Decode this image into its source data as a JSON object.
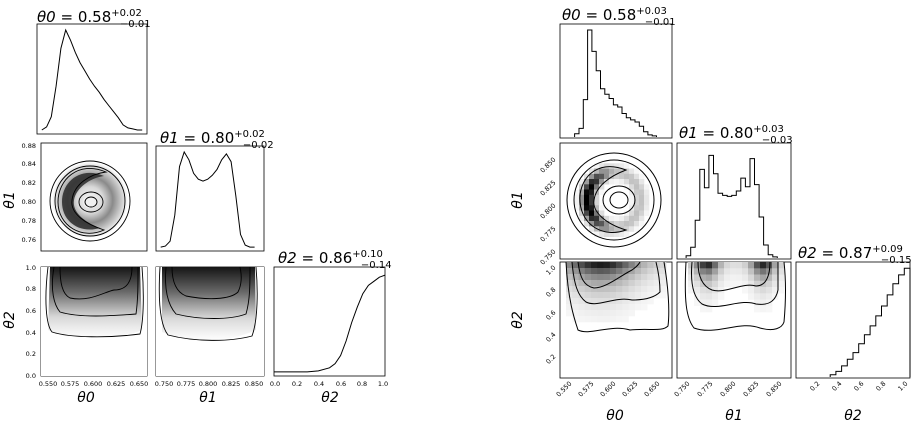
{
  "chart_data": [
    {
      "type": "corner",
      "style": "smoothed",
      "params": [
        "θ0",
        "θ1",
        "θ2"
      ],
      "titles": [
        {
          "median": "0.58",
          "plus": "+0.02",
          "minus": "−0.01"
        },
        {
          "median": "0.80",
          "plus": "+0.02",
          "minus": "−0.02"
        },
        {
          "median": "0.86",
          "plus": "+0.10",
          "minus": "−0.14"
        }
      ],
      "ranges": [
        [
          0.54,
          0.655
        ],
        [
          0.745,
          0.86
        ],
        [
          0.0,
          1.0
        ]
      ],
      "ticks": {
        "theta0": [
          "0.550",
          "0.575",
          "0.600",
          "0.625",
          "0.650"
        ],
        "theta1_x": [
          "0.750",
          "0.775",
          "0.800",
          "0.825",
          "0.850"
        ],
        "theta1_y": [
          "0.88",
          "0.84",
          "0.82",
          "0.80",
          "0.78",
          "0.76"
        ],
        "theta2_x": [
          "0.0",
          "0.2",
          "0.4",
          "0.6",
          "0.8",
          "1.0"
        ],
        "theta2_y": [
          "1.0",
          "0.8",
          "0.6",
          "0.4",
          "0.2",
          "0.0"
        ]
      },
      "marginals": {
        "theta0": {
          "x": [
            0.545,
            0.55,
            0.555,
            0.56,
            0.565,
            0.57,
            0.575,
            0.58,
            0.585,
            0.59,
            0.595,
            0.6,
            0.605,
            0.61,
            0.615,
            0.62,
            0.625,
            0.63,
            0.635,
            0.64,
            0.645,
            0.65
          ],
          "y": [
            0.02,
            0.05,
            0.15,
            0.45,
            0.82,
            1.0,
            0.9,
            0.78,
            0.68,
            0.6,
            0.52,
            0.45,
            0.39,
            0.32,
            0.26,
            0.2,
            0.14,
            0.07,
            0.04,
            0.03,
            0.02,
            0.02
          ]
        },
        "theta1": {
          "x": [
            0.75,
            0.755,
            0.76,
            0.765,
            0.77,
            0.775,
            0.78,
            0.785,
            0.79,
            0.795,
            0.8,
            0.805,
            0.81,
            0.815,
            0.82,
            0.825,
            0.83,
            0.835,
            0.84,
            0.845,
            0.85
          ],
          "y": [
            0.02,
            0.03,
            0.08,
            0.35,
            0.85,
            1.0,
            0.92,
            0.78,
            0.72,
            0.7,
            0.72,
            0.76,
            0.82,
            0.92,
            0.98,
            0.9,
            0.55,
            0.15,
            0.04,
            0.02,
            0.02
          ]
        },
        "theta2": {
          "x": [
            0.0,
            0.1,
            0.2,
            0.3,
            0.4,
            0.5,
            0.55,
            0.6,
            0.65,
            0.7,
            0.75,
            0.8,
            0.85,
            0.9,
            0.95,
            1.0
          ],
          "y": [
            0.02,
            0.02,
            0.02,
            0.02,
            0.03,
            0.06,
            0.1,
            0.18,
            0.32,
            0.5,
            0.65,
            0.78,
            0.86,
            0.9,
            0.94,
            0.96
          ]
        }
      }
    },
    {
      "type": "corner",
      "style": "histogram",
      "params": [
        "θ0",
        "θ1",
        "θ2"
      ],
      "titles": [
        {
          "median": "0.58",
          "plus": "+0.03",
          "minus": "−0.01"
        },
        {
          "median": "0.80",
          "plus": "+0.03",
          "minus": "−0.03"
        },
        {
          "median": "0.87",
          "plus": "+0.09",
          "minus": "−0.15"
        }
      ],
      "ranges": [
        [
          0.535,
          0.665
        ],
        [
          0.74,
          0.865
        ],
        [
          0.0,
          1.0
        ]
      ],
      "ticks": {
        "theta0": [
          "0.550",
          "0.575",
          "0.600",
          "0.625",
          "0.650"
        ],
        "theta1_x": [
          "0.750",
          "0.775",
          "0.800",
          "0.825",
          "0.850"
        ],
        "theta1_y": [
          "0.850",
          "0.825",
          "0.800",
          "0.775",
          "0.750"
        ],
        "theta2_x": [
          "0.2",
          "0.4",
          "0.6",
          "0.8",
          "1.0"
        ],
        "theta2_y": [
          "1.0",
          "0.8",
          "0.6",
          "0.4",
          "0.2"
        ]
      },
      "marginals": {
        "theta0": {
          "edges": [
            0.552,
            0.557,
            0.562,
            0.567,
            0.572,
            0.577,
            0.582,
            0.587,
            0.592,
            0.597,
            0.602,
            0.607,
            0.612,
            0.617,
            0.622,
            0.627,
            0.632,
            0.637,
            0.642,
            0.647
          ],
          "counts": [
            0.03,
            0.08,
            0.35,
            1.0,
            0.8,
            0.62,
            0.45,
            0.4,
            0.36,
            0.3,
            0.28,
            0.22,
            0.18,
            0.16,
            0.14,
            0.1,
            0.05,
            0.02,
            0.01
          ]
        },
        "theta1": {
          "edges": [
            0.75,
            0.755,
            0.76,
            0.765,
            0.77,
            0.775,
            0.78,
            0.785,
            0.79,
            0.795,
            0.8,
            0.805,
            0.81,
            0.815,
            0.82,
            0.825,
            0.83,
            0.835,
            0.84,
            0.845,
            0.85
          ],
          "counts": [
            0.02,
            0.1,
            0.35,
            0.82,
            0.65,
            0.95,
            0.78,
            0.6,
            0.58,
            0.57,
            0.58,
            0.62,
            0.74,
            0.66,
            0.92,
            0.68,
            0.38,
            0.12,
            0.03,
            0.01
          ]
        },
        "theta2": {
          "edges": [
            0.3,
            0.35,
            0.4,
            0.45,
            0.5,
            0.55,
            0.6,
            0.65,
            0.7,
            0.75,
            0.8,
            0.85,
            0.9,
            0.95,
            1.0
          ],
          "counts": [
            0.02,
            0.05,
            0.1,
            0.16,
            0.22,
            0.3,
            0.38,
            0.46,
            0.55,
            0.64,
            0.74,
            0.84,
            0.92,
            0.98
          ]
        }
      }
    }
  ]
}
